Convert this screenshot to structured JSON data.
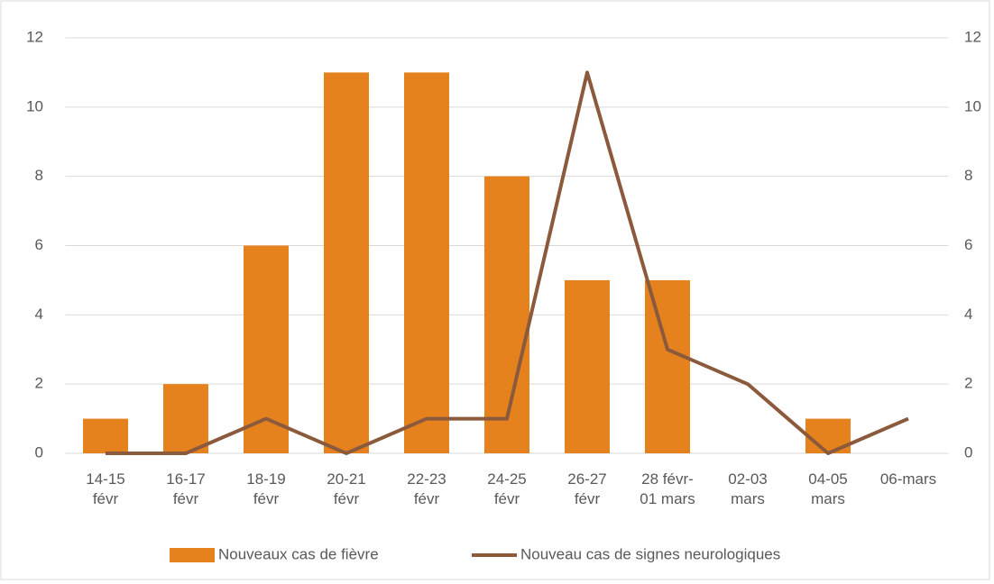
{
  "chart_data": {
    "type": "bar-line",
    "categories": [
      "14-15\nfévr",
      "16-17\nfévr",
      "18-19\nfévr",
      "20-21\nfévr",
      "22-23\nfévr",
      "24-25\nfévr",
      "26-27\nfévr",
      "28 févr-\n01 mars",
      "02-03\nmars",
      "04-05\nmars",
      "06-mars"
    ],
    "series": [
      {
        "name": "Nouveaux cas de fièvre",
        "type": "bar",
        "color": "#e6821e",
        "values": [
          1,
          2,
          6,
          11,
          11,
          8,
          5,
          5,
          null,
          1,
          null
        ]
      },
      {
        "name": "Nouveau cas de signes neurologiques",
        "type": "line",
        "axis": "y2",
        "color": "#8b5a3c",
        "values": [
          0,
          0,
          1,
          0,
          1,
          1,
          11,
          3,
          2,
          0,
          1
        ]
      }
    ],
    "ylim": [
      0,
      12
    ],
    "yticks": [
      0,
      2,
      4,
      6,
      8,
      10,
      12
    ],
    "y2lim": [
      0,
      12
    ],
    "y2ticks": [
      0,
      2,
      4,
      6,
      8,
      10,
      12
    ],
    "grid": true,
    "legend": "bottom"
  }
}
